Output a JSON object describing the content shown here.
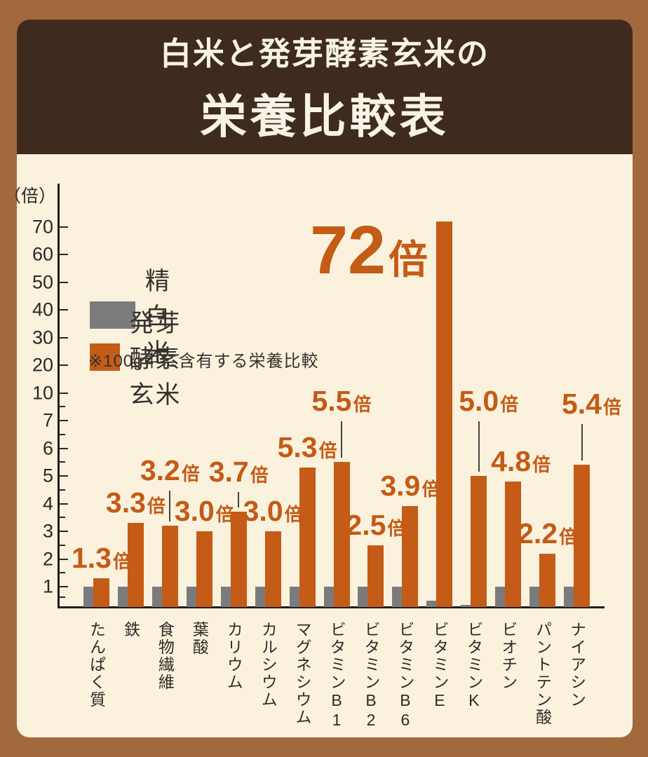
{
  "header": {
    "title_line1": "白米と発芽酵素玄米の",
    "title_line2": "栄養比較表"
  },
  "colors": {
    "accent_orange": "#c45b16",
    "white_rice_gray": "#7b7b7e",
    "panel_cream": "#fbf2de",
    "frame_brown": "#a2693c",
    "header_brown": "#3e2b1d",
    "header_text": "#f8f3e6"
  },
  "chart_data": {
    "type": "bar",
    "title": "白米と発芽酵素玄米の栄養比較表",
    "unit_label": "（倍）",
    "note": "※100g中に含有する栄養比較",
    "y_axis": {
      "major_ticks": [
        70,
        60,
        50,
        40,
        30,
        20,
        10,
        7,
        6,
        5,
        4,
        3,
        2,
        1
      ],
      "minor_ticks": [
        8.5,
        6.5,
        5.5,
        4.5,
        3.5,
        2.5,
        1.5,
        0.5
      ],
      "scale": "compressed: 1-7 per unit, 10-70 per ten",
      "grid": false
    },
    "legend": [
      {
        "label": "精白米",
        "color": "#7b7b7e"
      },
      {
        "label": "発芽酵素玄米",
        "color": "#c45b16"
      }
    ],
    "legend_position": "upper-left",
    "series": [
      {
        "name": "精白米",
        "values": [
          1.0,
          1.0,
          1.0,
          1.0,
          1.0,
          1.0,
          1.0,
          1.0,
          1.0,
          1.0,
          0.3,
          0.1,
          1.0,
          1.0,
          1.0
        ]
      },
      {
        "name": "発芽酵素玄米",
        "values": [
          1.3,
          3.3,
          3.2,
          3.0,
          3.7,
          3.0,
          5.3,
          5.5,
          2.5,
          3.9,
          72,
          5.0,
          4.8,
          2.2,
          5.4
        ]
      }
    ],
    "categories": [
      "たんぱく質",
      "鉄",
      "食物繊維",
      "葉酸",
      "カリウム",
      "カルシウム",
      "マグネシウム",
      "ビタミンB1",
      "ビタミンB2",
      "ビタミンB6",
      "ビタミンE",
      "ビタミンK",
      "ビオチン",
      "パントテン酸",
      "ナイアシン"
    ],
    "value_labels": [
      "1.3",
      "3.3",
      "3.2",
      "3.0",
      "3.7",
      "3.0",
      "5.3",
      "5.5",
      "2.5",
      "3.9",
      "72",
      "5.0",
      "4.8",
      "2.2",
      "5.4"
    ],
    "value_label_unit": "倍",
    "highlight_index": 10,
    "raised_label_indices": [
      2,
      4,
      7,
      11,
      14
    ]
  }
}
